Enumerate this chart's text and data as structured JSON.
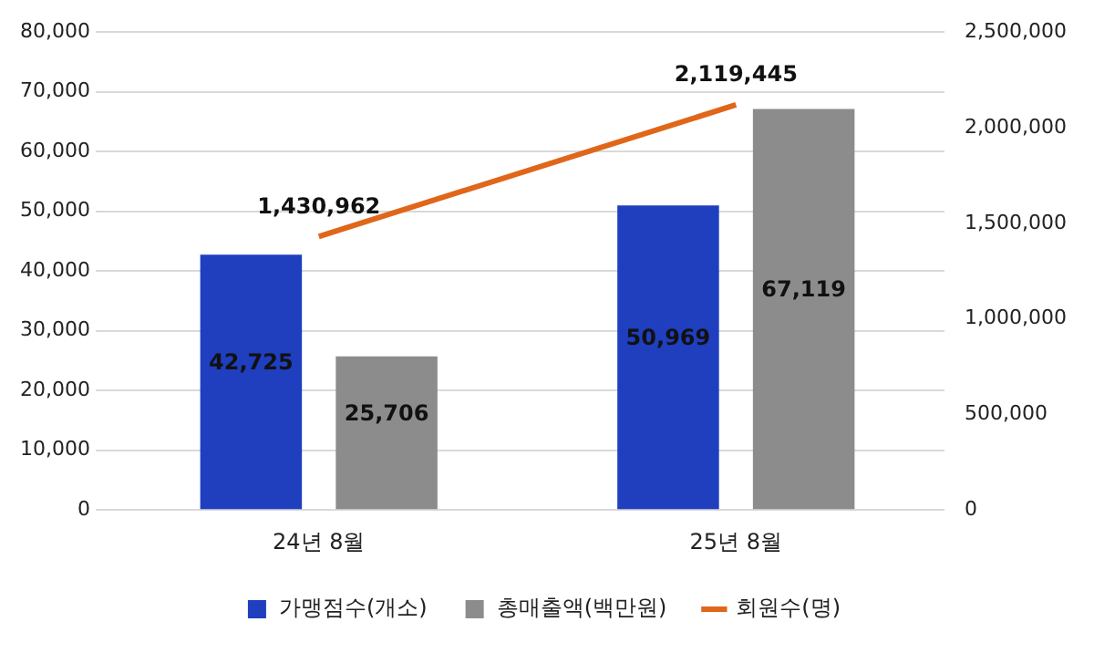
{
  "chart_data": {
    "type": "bar",
    "categories": [
      "24년 8월",
      "25년 8월"
    ],
    "series": [
      {
        "name": "가맹점수(개소)",
        "color": "#1f3fbf",
        "values": [
          42725,
          50969
        ],
        "value_labels": [
          "42,725",
          "50,969"
        ]
      },
      {
        "name": "총매출액(백만원)",
        "color": "#8c8c8c",
        "values": [
          25706,
          67119
        ],
        "value_labels": [
          "25,706",
          "67,119"
        ]
      },
      {
        "name": "회원수(명)",
        "type": "line",
        "axis": "y2",
        "color": "#e0661a",
        "values": [
          1430962,
          2119445
        ],
        "value_labels": [
          "1,430,962",
          "2,119,445"
        ]
      }
    ],
    "ylim": [
      0,
      80000
    ],
    "yticks": [
      0,
      {
        "value": 10000,
        "label": "10,000"
      },
      {
        "value": 20000,
        "label": "20,000"
      },
      {
        "value": 30000,
        "label": "30,000"
      },
      {
        "value": 40000,
        "label": "40,000"
      },
      {
        "value": 50000,
        "label": "50,000"
      },
      {
        "value": 60000,
        "label": "60,000"
      },
      {
        "value": 70000,
        "label": "70,000"
      },
      {
        "value": 80000,
        "label": "80,000"
      }
    ],
    "y2lim": [
      0,
      2500000
    ],
    "y2ticks": [
      0,
      {
        "value": 500000,
        "label": "500,000"
      },
      {
        "value": 1000000,
        "label": "1,000,000"
      },
      {
        "value": 1500000,
        "label": "1,500,000"
      },
      {
        "value": 2000000,
        "label": "2,000,000"
      },
      {
        "value": 2500000,
        "label": "2,500,000"
      }
    ],
    "grid": "y",
    "legend": "bottom"
  }
}
